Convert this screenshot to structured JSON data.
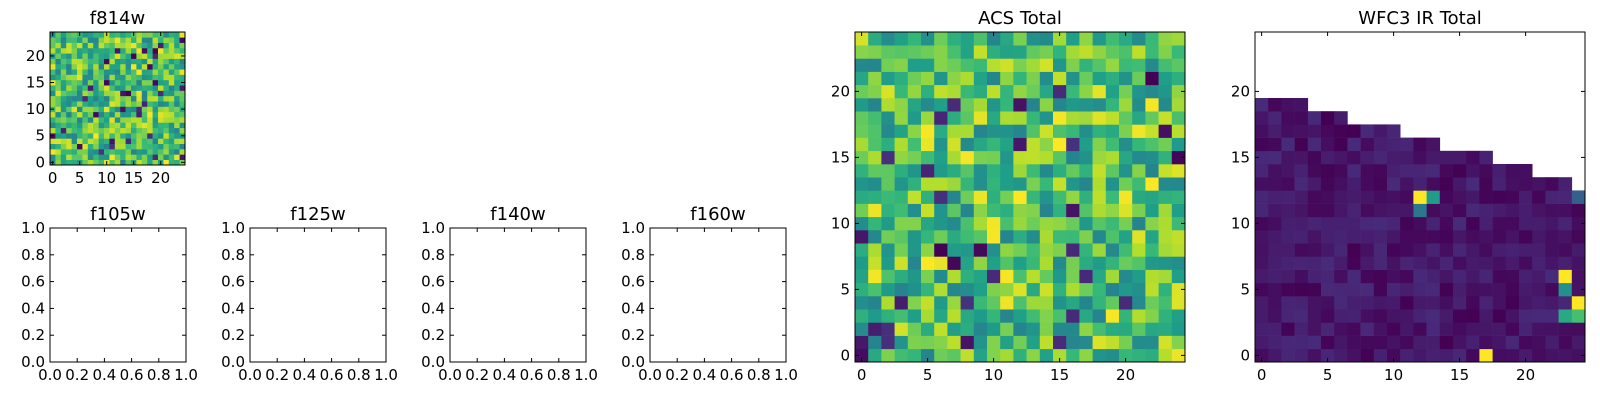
{
  "chart_data": [
    {
      "type": "heatmap",
      "title": "f814w",
      "colormap": "viridis",
      "size": 25,
      "xticks": [
        0,
        5,
        10,
        15,
        20
      ],
      "yticks": [
        0,
        5,
        10,
        15,
        20
      ],
      "xlim": [
        -0.5,
        24.5
      ],
      "ylim": [
        -0.5,
        24.5
      ],
      "value_range": [
        0,
        1
      ],
      "pattern": "random",
      "value_band": [
        0.45,
        1.0
      ],
      "seed": 814
    },
    {
      "type": "heatmap",
      "title": "f105w",
      "empty": true,
      "xticks": [
        "0.0",
        "0.2",
        "0.4",
        "0.6",
        "0.8",
        "1.0"
      ],
      "yticks": [
        "0.0",
        "0.2",
        "0.4",
        "0.6",
        "0.8",
        "1.0"
      ],
      "xlim": [
        0,
        1
      ],
      "ylim": [
        0,
        1
      ]
    },
    {
      "type": "heatmap",
      "title": "f125w",
      "empty": true,
      "xticks": [
        "0.0",
        "0.2",
        "0.4",
        "0.6",
        "0.8",
        "1.0"
      ],
      "yticks": [
        "0.0",
        "0.2",
        "0.4",
        "0.6",
        "0.8",
        "1.0"
      ],
      "xlim": [
        0,
        1
      ],
      "ylim": [
        0,
        1
      ]
    },
    {
      "type": "heatmap",
      "title": "f140w",
      "empty": true,
      "xticks": [
        "0.0",
        "0.2",
        "0.4",
        "0.6",
        "0.8",
        "1.0"
      ],
      "yticks": [
        "0.0",
        "0.2",
        "0.4",
        "0.6",
        "0.8",
        "1.0"
      ],
      "xlim": [
        0,
        1
      ],
      "ylim": [
        0,
        1
      ]
    },
    {
      "type": "heatmap",
      "title": "f160w",
      "empty": true,
      "xticks": [
        "0.0",
        "0.2",
        "0.4",
        "0.6",
        "0.8",
        "1.0"
      ],
      "yticks": [
        "0.0",
        "0.2",
        "0.4",
        "0.6",
        "0.8",
        "1.0"
      ],
      "xlim": [
        0,
        1
      ],
      "ylim": [
        0,
        1
      ]
    },
    {
      "type": "heatmap",
      "title": "ACS Total",
      "colormap": "viridis",
      "size": 25,
      "xticks": [
        0,
        5,
        10,
        15,
        20
      ],
      "yticks": [
        0,
        5,
        10,
        15,
        20
      ],
      "xlim": [
        -0.5,
        24.5
      ],
      "ylim": [
        -0.5,
        24.5
      ],
      "value_range": [
        0,
        1
      ],
      "pattern": "random",
      "value_band": [
        0.45,
        1.0
      ],
      "seed": 2017
    },
    {
      "type": "heatmap",
      "title": "WFC3 IR Total",
      "colormap": "viridis",
      "size": 25,
      "xticks": [
        0,
        5,
        10,
        15,
        20
      ],
      "yticks": [
        0,
        5,
        10,
        15,
        20
      ],
      "xlim": [
        -0.5,
        24.5
      ],
      "ylim": [
        -0.5,
        24.5
      ],
      "value_range": [
        0,
        1
      ],
      "pattern": "staircase",
      "value_band": [
        0.0,
        0.12
      ],
      "column_heights": [
        20,
        20,
        20,
        20,
        19,
        19,
        19,
        18,
        18,
        18,
        18,
        17,
        17,
        17,
        16,
        16,
        16,
        16,
        15,
        15,
        15,
        14,
        14,
        14,
        13
      ],
      "highlights": [
        {
          "x": 12,
          "y": 12,
          "v": 1.0
        },
        {
          "x": 13,
          "y": 12,
          "v": 0.55
        },
        {
          "x": 12,
          "y": 11,
          "v": 0.4
        },
        {
          "x": 23,
          "y": 6,
          "v": 1.0
        },
        {
          "x": 23,
          "y": 5,
          "v": 0.5
        },
        {
          "x": 24,
          "y": 4,
          "v": 1.0
        },
        {
          "x": 23,
          "y": 3,
          "v": 0.6
        },
        {
          "x": 24,
          "y": 3,
          "v": 0.7
        },
        {
          "x": 24,
          "y": 12,
          "v": 0.3
        },
        {
          "x": 17,
          "y": 0,
          "v": 1.0
        }
      ],
      "seed": 3
    }
  ]
}
